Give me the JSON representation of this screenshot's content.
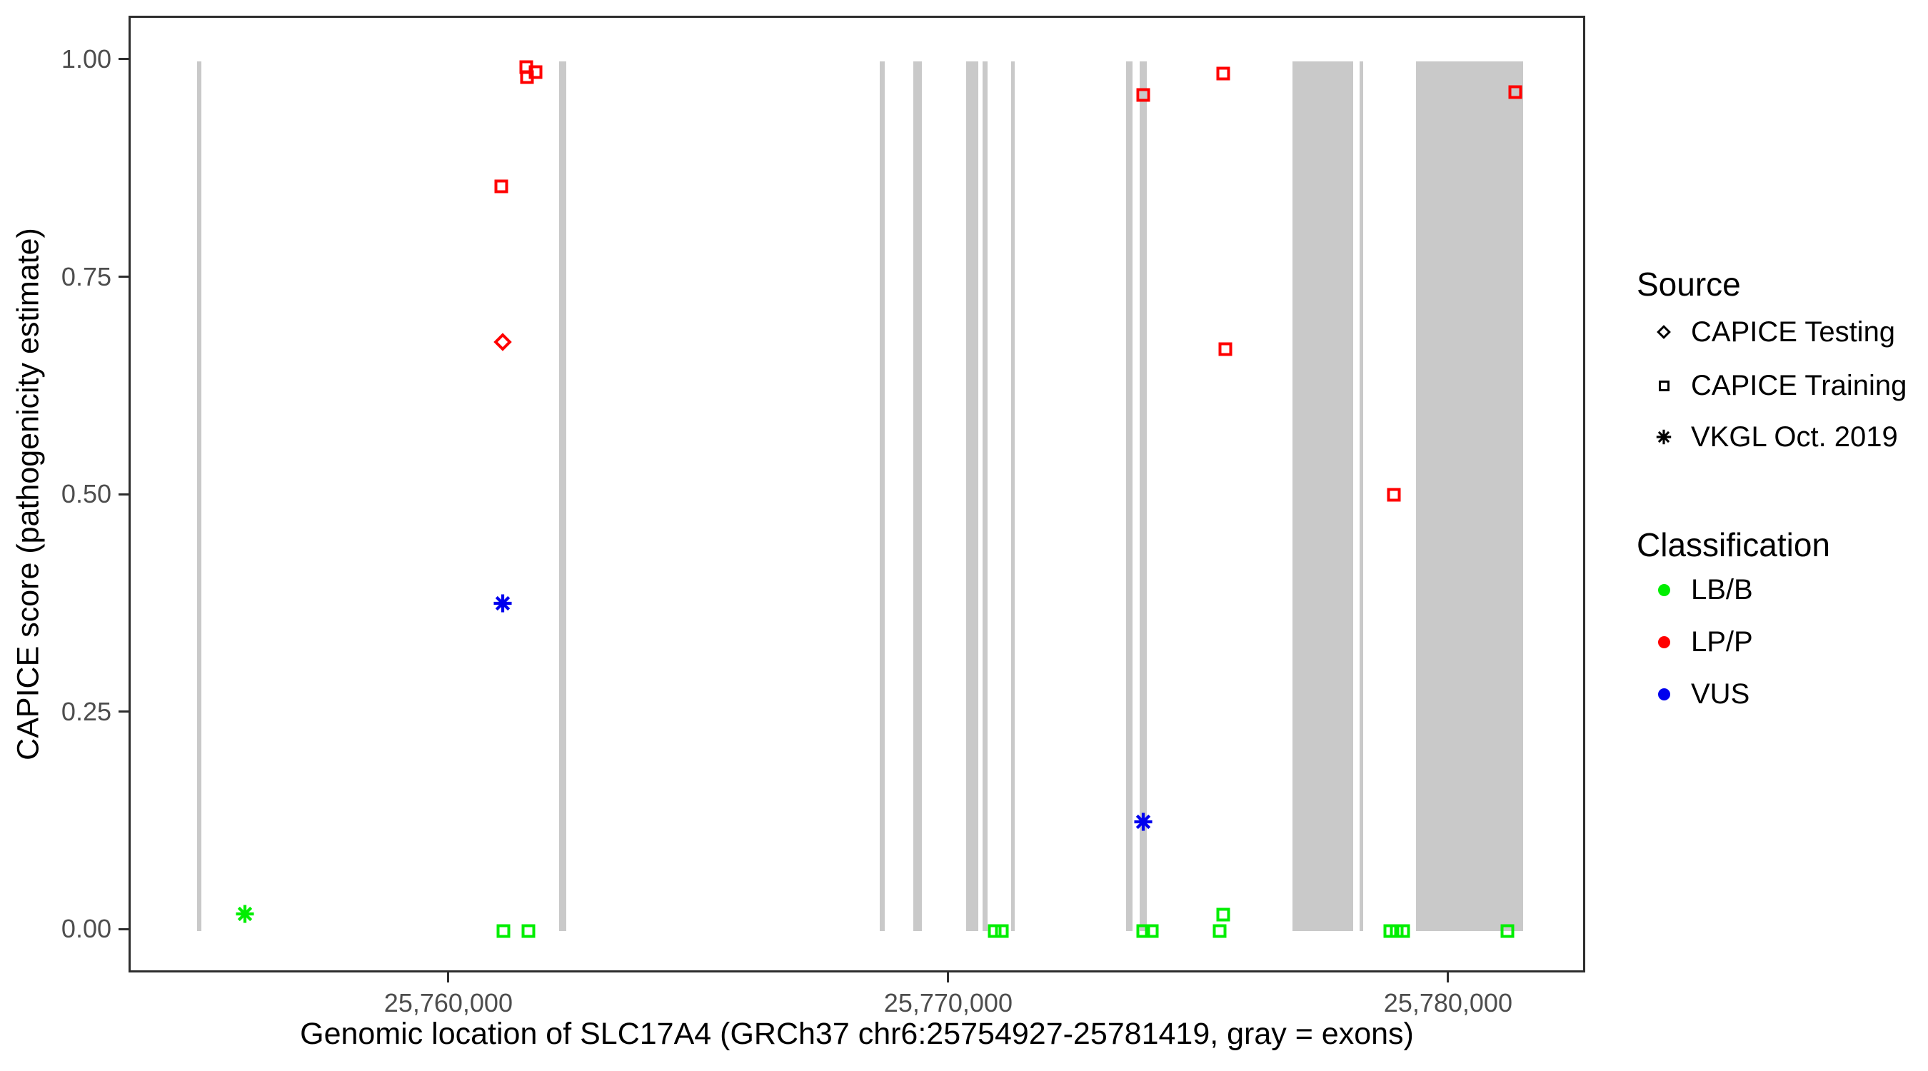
{
  "figure": {
    "x_axis": {
      "title": "Genomic location of SLC17A4 (GRCh37 chr6:25754927-25781419, gray = exons)",
      "domain_min": 25753602,
      "domain_max": 25782744,
      "ticks": [
        {
          "bp": 25760000,
          "label": "25,760,000"
        },
        {
          "bp": 25770000,
          "label": "25,770,000"
        },
        {
          "bp": 25780000,
          "label": "25,780,000"
        }
      ]
    },
    "y_axis": {
      "title": "CAPICE score (pathogenicity estimate)",
      "domain_min": -0.05,
      "domain_max": 1.05,
      "ticks": [
        {
          "value": 1.0,
          "label": "1.00"
        },
        {
          "value": 0.75,
          "label": "0.75"
        },
        {
          "value": 0.5,
          "label": "0.50"
        },
        {
          "value": 0.25,
          "label": "0.25"
        },
        {
          "value": 0.0,
          "label": "0.00"
        }
      ]
    },
    "legend": {
      "source": {
        "title": "Source",
        "items": [
          {
            "label": "CAPICE Testing",
            "marker": "diamond"
          },
          {
            "label": "CAPICE Training",
            "marker": "square"
          },
          {
            "label": "VKGL Oct. 2019",
            "marker": "asterisk"
          }
        ]
      },
      "classification": {
        "title": "Classification",
        "items": [
          {
            "label": "LB/B",
            "color_key": "lbb_green"
          },
          {
            "label": "LP/P",
            "color_key": "lpp_red"
          },
          {
            "label": "VUS",
            "color_key": "vus_blue"
          }
        ]
      }
    },
    "colors": {
      "lbb_green": "#00ee00",
      "lpp_red": "#ff0000",
      "vus_blue": "#0000ee",
      "exon_gray": "#c9c9c9",
      "tick_text": "#4d4d4d",
      "panel_border": "#2d2d2d"
    }
  },
  "chart_data": {
    "type": "scatter",
    "title": "",
    "xlabel": "Genomic location of SLC17A4 (GRCh37 chr6:25754927-25781419, gray = exons)",
    "ylabel": "CAPICE score (pathogenicity estimate)",
    "xlim": [
      25753602,
      25782744
    ],
    "ylim": [
      -0.05,
      1.05
    ],
    "grid": false,
    "legend_position": "right",
    "exons_note": "gray vertical rectangles span score 0.0 to 1.0",
    "exons": [
      {
        "start": 25754930,
        "end": 25755010
      },
      {
        "start": 25762170,
        "end": 25762310
      },
      {
        "start": 25768590,
        "end": 25768690
      },
      {
        "start": 25769260,
        "end": 25769430
      },
      {
        "start": 25770310,
        "end": 25770560
      },
      {
        "start": 25770640,
        "end": 25770740
      },
      {
        "start": 25771210,
        "end": 25771290
      },
      {
        "start": 25773510,
        "end": 25773640
      },
      {
        "start": 25773790,
        "end": 25773930
      },
      {
        "start": 25776840,
        "end": 25778060
      },
      {
        "start": 25778190,
        "end": 25778260
      },
      {
        "start": 25779310,
        "end": 25781460
      }
    ],
    "points": [
      {
        "bp": 25755886,
        "score": 0.02,
        "shape": "asterisk",
        "classification": "LB/B",
        "source": "VKGL Oct. 2019",
        "color_key": "lbb_green"
      },
      {
        "bp": 25761014,
        "score": 0.856,
        "shape": "square",
        "classification": "LP/P",
        "source": "CAPICE Training",
        "color_key": "lpp_red"
      },
      {
        "bp": 25761514,
        "score": 0.993,
        "shape": "square",
        "classification": "LP/P",
        "source": "CAPICE Training",
        "color_key": "lpp_red"
      },
      {
        "bp": 25761529,
        "score": 0.982,
        "shape": "square",
        "classification": "LP/P",
        "source": "CAPICE Training",
        "color_key": "lpp_red"
      },
      {
        "bp": 25761700,
        "score": 0.988,
        "shape": "square",
        "classification": "LP/P",
        "source": "CAPICE Training",
        "color_key": "lpp_red"
      },
      {
        "bp": 25761043,
        "score": 0.677,
        "shape": "diamond",
        "classification": "LP/P",
        "source": "CAPICE Testing",
        "color_key": "lpp_red"
      },
      {
        "bp": 25761043,
        "score": 0.377,
        "shape": "asterisk",
        "classification": "VUS",
        "source": "VKGL Oct. 2019",
        "color_key": "vus_blue"
      },
      {
        "bp": 25761057,
        "score": 0.0,
        "shape": "square",
        "classification": "LB/B",
        "source": "CAPICE Training",
        "color_key": "lbb_green"
      },
      {
        "bp": 25761557,
        "score": 0.0,
        "shape": "square",
        "classification": "LB/B",
        "source": "CAPICE Training",
        "color_key": "lbb_green"
      },
      {
        "bp": 25770890,
        "score": 0.0,
        "shape": "square",
        "classification": "LB/B",
        "source": "CAPICE Training",
        "color_key": "lbb_green"
      },
      {
        "bp": 25771030,
        "score": 0.0,
        "shape": "square",
        "classification": "LB/B",
        "source": "CAPICE Training",
        "color_key": "lbb_green"
      },
      {
        "bp": 25773857,
        "score": 0.961,
        "shape": "square",
        "classification": "LP/P",
        "source": "CAPICE Training",
        "color_key": "lpp_red"
      },
      {
        "bp": 25773857,
        "score": 0.126,
        "shape": "asterisk",
        "classification": "VUS",
        "source": "VKGL Oct. 2019",
        "color_key": "vus_blue"
      },
      {
        "bp": 25773857,
        "score": 0.0,
        "shape": "square",
        "classification": "LB/B",
        "source": "CAPICE Training",
        "color_key": "lbb_green"
      },
      {
        "bp": 25774029,
        "score": 0.0,
        "shape": "square",
        "classification": "LB/B",
        "source": "CAPICE Training",
        "color_key": "lbb_green"
      },
      {
        "bp": 25775457,
        "score": 0.986,
        "shape": "square",
        "classification": "LP/P",
        "source": "CAPICE Training",
        "color_key": "lpp_red"
      },
      {
        "bp": 25775500,
        "score": 0.669,
        "shape": "square",
        "classification": "LP/P",
        "source": "CAPICE Training",
        "color_key": "lpp_red"
      },
      {
        "bp": 25775457,
        "score": 0.019,
        "shape": "square",
        "classification": "LB/B",
        "source": "CAPICE Training",
        "color_key": "lbb_green"
      },
      {
        "bp": 25775386,
        "score": 0.0,
        "shape": "square",
        "classification": "LB/B",
        "source": "CAPICE Training",
        "color_key": "lbb_green"
      },
      {
        "bp": 25778871,
        "score": 0.502,
        "shape": "square",
        "classification": "LP/P",
        "source": "CAPICE Training",
        "color_key": "lpp_red"
      },
      {
        "bp": 25778800,
        "score": 0.0,
        "shape": "square",
        "classification": "LB/B",
        "source": "CAPICE Training",
        "color_key": "lbb_green"
      },
      {
        "bp": 25778930,
        "score": 0.0,
        "shape": "square",
        "classification": "LB/B",
        "source": "CAPICE Training",
        "color_key": "lbb_green"
      },
      {
        "bp": 25779060,
        "score": 0.0,
        "shape": "square",
        "classification": "LB/B",
        "source": "CAPICE Training",
        "color_key": "lbb_green"
      },
      {
        "bp": 25781300,
        "score": 0.965,
        "shape": "square",
        "classification": "LP/P",
        "source": "CAPICE Training",
        "color_key": "lpp_red"
      },
      {
        "bp": 25781143,
        "score": 0.0,
        "shape": "square",
        "classification": "LB/B",
        "source": "CAPICE Training",
        "color_key": "lbb_green"
      }
    ]
  }
}
